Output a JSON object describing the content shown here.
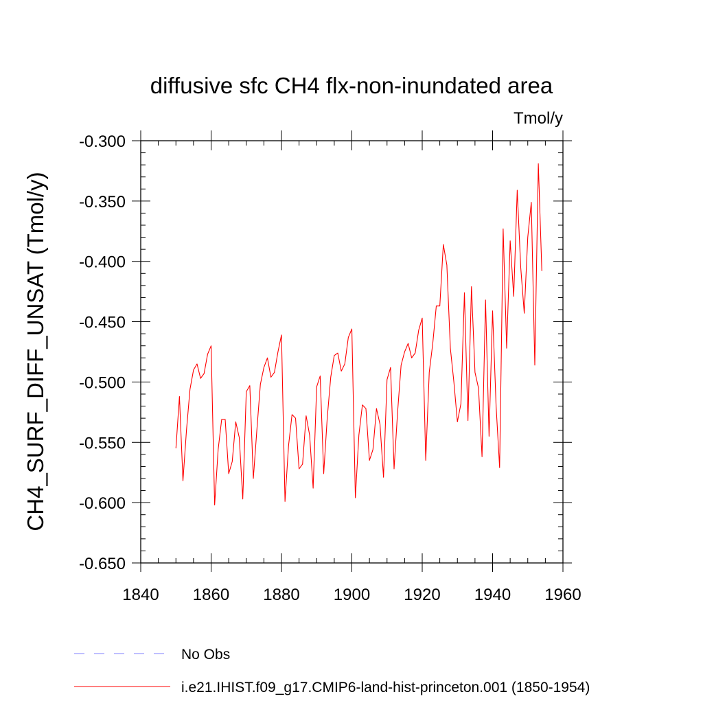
{
  "chart_data": {
    "type": "line",
    "title": "diffusive sfc CH4 flx-non-inundated area",
    "units": "Tmol/y",
    "ylabel": "CH4_SURF_DIFF_UNSAT  (Tmol/y)",
    "xlabel": "",
    "xlim": [
      1840,
      1960
    ],
    "ylim": [
      -0.65,
      -0.3
    ],
    "xticks": [
      1840,
      1860,
      1880,
      1900,
      1920,
      1940,
      1960
    ],
    "yticks": [
      -0.65,
      -0.6,
      -0.55,
      -0.5,
      -0.45,
      -0.4,
      -0.35,
      -0.3
    ],
    "xtick_labels": [
      "1840",
      "1860",
      "1880",
      "1900",
      "1920",
      "1940",
      "1960"
    ],
    "ytick_labels": [
      "-0.650",
      "-0.600",
      "-0.550",
      "-0.500",
      "-0.450",
      "-0.400",
      "-0.350",
      "-0.300"
    ],
    "grid": false,
    "legend_position": "bottom",
    "series": [
      {
        "name": "No Obs",
        "color": "#8080ff",
        "dash": "dashed",
        "x": [],
        "y": []
      },
      {
        "name": "i.e21.IHIST.f09_g17.CMIP6-land-hist-princeton.001 (1850-1954)",
        "color": "#ff0000",
        "dash": "solid",
        "x": [
          1850,
          1851,
          1852,
          1853,
          1854,
          1855,
          1856,
          1857,
          1858,
          1859,
          1860,
          1861,
          1862,
          1863,
          1864,
          1865,
          1866,
          1867,
          1868,
          1869,
          1870,
          1871,
          1872,
          1873,
          1874,
          1875,
          1876,
          1877,
          1878,
          1879,
          1880,
          1881,
          1882,
          1883,
          1884,
          1885,
          1886,
          1887,
          1888,
          1889,
          1890,
          1891,
          1892,
          1893,
          1894,
          1895,
          1896,
          1897,
          1898,
          1899,
          1900,
          1901,
          1902,
          1903,
          1904,
          1905,
          1906,
          1907,
          1908,
          1909,
          1910,
          1911,
          1912,
          1913,
          1914,
          1915,
          1916,
          1917,
          1918,
          1919,
          1920,
          1921,
          1922,
          1923,
          1924,
          1925,
          1926,
          1927,
          1928,
          1929,
          1930,
          1931,
          1932,
          1933,
          1934,
          1935,
          1936,
          1937,
          1938,
          1939,
          1940,
          1941,
          1942,
          1943,
          1944,
          1945,
          1946,
          1947,
          1948,
          1949,
          1950,
          1951,
          1952,
          1953,
          1954
        ],
        "y": [
          -0.555,
          -0.512,
          -0.582,
          -0.54,
          -0.506,
          -0.49,
          -0.485,
          -0.497,
          -0.493,
          -0.477,
          -0.47,
          -0.602,
          -0.556,
          -0.531,
          -0.531,
          -0.576,
          -0.566,
          -0.533,
          -0.546,
          -0.597,
          -0.508,
          -0.503,
          -0.58,
          -0.54,
          -0.502,
          -0.488,
          -0.48,
          -0.496,
          -0.492,
          -0.475,
          -0.461,
          -0.599,
          -0.553,
          -0.527,
          -0.53,
          -0.572,
          -0.568,
          -0.528,
          -0.544,
          -0.588,
          -0.504,
          -0.495,
          -0.576,
          -0.53,
          -0.496,
          -0.478,
          -0.476,
          -0.491,
          -0.485,
          -0.463,
          -0.456,
          -0.596,
          -0.544,
          -0.519,
          -0.522,
          -0.565,
          -0.556,
          -0.522,
          -0.535,
          -0.579,
          -0.498,
          -0.488,
          -0.572,
          -0.525,
          -0.486,
          -0.475,
          -0.468,
          -0.48,
          -0.476,
          -0.457,
          -0.447,
          -0.565,
          -0.492,
          -0.468,
          -0.437,
          -0.437,
          -0.386,
          -0.403,
          -0.472,
          -0.5,
          -0.533,
          -0.518,
          -0.426,
          -0.532,
          -0.421,
          -0.492,
          -0.505,
          -0.562,
          -0.432,
          -0.545,
          -0.441,
          -0.52,
          -0.571,
          -0.373,
          -0.472,
          -0.383,
          -0.429,
          -0.341,
          -0.405,
          -0.443,
          -0.38,
          -0.351,
          -0.486,
          -0.319,
          -0.408
        ]
      }
    ]
  }
}
